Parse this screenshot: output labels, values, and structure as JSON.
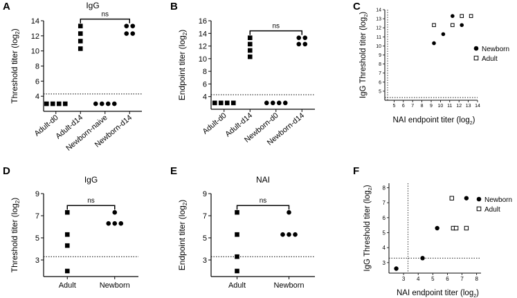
{
  "chart_data": [
    {
      "panel": "A",
      "type": "scatter",
      "title": "IgG",
      "xlabel": "",
      "ylabel": "Threshold titer (log2)",
      "ylim": [
        2,
        14
      ],
      "yticks": [
        4,
        6,
        8,
        10,
        12,
        14
      ],
      "categories": [
        "Adult-d0",
        "Adult-d14",
        "Newborn-naive",
        "Newborn-d14"
      ],
      "marker": [
        "square",
        "square",
        "circle",
        "circle"
      ],
      "points": [
        [
          3,
          3,
          3,
          3
        ],
        [
          10.3,
          11.3,
          12.3,
          13.3
        ],
        [
          3,
          3,
          3,
          3
        ],
        [
          12.3,
          12.3,
          13.3,
          13.3
        ]
      ],
      "threshold": 4.3,
      "significance": {
        "from": 1,
        "to": 3,
        "label": "ns"
      }
    },
    {
      "panel": "B",
      "type": "scatter",
      "title": "",
      "xlabel": "",
      "ylabel": "Endpoint titer (log2)",
      "ylim": [
        2,
        16
      ],
      "yticks": [
        4,
        6,
        8,
        10,
        12,
        14,
        16
      ],
      "categories": [
        "Adult-d0",
        "Adult-d14",
        "Newborn-d0",
        "Newborn-d14"
      ],
      "marker": [
        "square",
        "square",
        "circle",
        "circle"
      ],
      "points": [
        [
          3,
          3,
          3,
          3
        ],
        [
          10.3,
          11.3,
          12.3,
          13.3
        ],
        [
          3,
          3,
          3,
          3
        ],
        [
          12.3,
          12.3,
          13.3,
          13.3
        ]
      ],
      "threshold": 4.3,
      "significance": {
        "from": 1,
        "to": 3,
        "label": "ns"
      }
    },
    {
      "panel": "C",
      "type": "scatter",
      "title": "",
      "xlabel": "NAI endpoint titer (log2)",
      "ylabel": "IgG Threshold titer (log2)",
      "xlim": [
        4,
        14
      ],
      "ylim": [
        4,
        14
      ],
      "xticks": [
        5,
        6,
        7,
        8,
        9,
        10,
        11,
        12,
        13,
        14
      ],
      "yticks": [
        5,
        6,
        7,
        8,
        9,
        10,
        11,
        12,
        13,
        14
      ],
      "vline": 4.3,
      "hline": 4.3,
      "series": [
        {
          "name": "Newborn",
          "marker": "filled-circle",
          "points": [
            [
              9.3,
              10.3
            ],
            [
              10.3,
              11.3
            ],
            [
              11.3,
              13.3
            ],
            [
              12.3,
              12.3
            ]
          ]
        },
        {
          "name": "Adult",
          "marker": "open-square",
          "points": [
            [
              9.3,
              12.3
            ],
            [
              11.3,
              12.3
            ],
            [
              12.3,
              13.3
            ],
            [
              13.3,
              13.3
            ]
          ]
        }
      ],
      "legend": "right"
    },
    {
      "panel": "D",
      "type": "scatter",
      "title": "IgG",
      "xlabel": "",
      "ylabel": "Threshold titer (log2)",
      "ylim": [
        1.5,
        9
      ],
      "yticks": [
        3,
        5,
        7,
        9
      ],
      "categories": [
        "Adult",
        "Newborn"
      ],
      "marker": [
        "square",
        "circle"
      ],
      "points": [
        [
          2,
          4.3,
          5.3,
          7.3
        ],
        [
          6.3,
          6.3,
          6.3,
          7.3
        ]
      ],
      "threshold": 3.3,
      "significance": {
        "from": 0,
        "to": 1,
        "label": "ns"
      }
    },
    {
      "panel": "E",
      "type": "scatter",
      "title": "NAI",
      "xlabel": "",
      "ylabel": "Endpoint titer (log2)",
      "ylim": [
        1.5,
        9
      ],
      "yticks": [
        3,
        5,
        7,
        9
      ],
      "categories": [
        "Adult",
        "Newborn"
      ],
      "marker": [
        "square",
        "circle"
      ],
      "points": [
        [
          2,
          3.3,
          5.3,
          7.3
        ],
        [
          5.3,
          5.3,
          5.3,
          7.3
        ]
      ],
      "threshold": 3.3,
      "significance": {
        "from": 0,
        "to": 1,
        "label": "ns"
      }
    },
    {
      "panel": "F",
      "type": "scatter",
      "title": "",
      "xlabel": "NAI endpoint titer (log2)",
      "ylabel": "IgG Threshold titer (log2)",
      "xlim": [
        2,
        8.3
      ],
      "ylim": [
        2.3,
        8.3
      ],
      "xticks": [
        3,
        4,
        5,
        6,
        7,
        8
      ],
      "yticks": [
        3,
        4,
        5,
        6,
        7,
        8
      ],
      "vline": 3.3,
      "hline": 3.3,
      "series": [
        {
          "name": "Newborn",
          "marker": "filled-circle",
          "points": [
            [
              2.5,
              2.6
            ],
            [
              4.3,
              3.3
            ],
            [
              5.3,
              5.3
            ],
            [
              7.3,
              7.3
            ]
          ]
        },
        {
          "name": "Adult",
          "marker": "open-square",
          "points": [
            [
              6.3,
              7.3
            ],
            [
              6.4,
              5.3
            ],
            [
              6.6,
              5.3
            ],
            [
              7.3,
              5.3
            ]
          ]
        }
      ],
      "legend": "right"
    }
  ]
}
